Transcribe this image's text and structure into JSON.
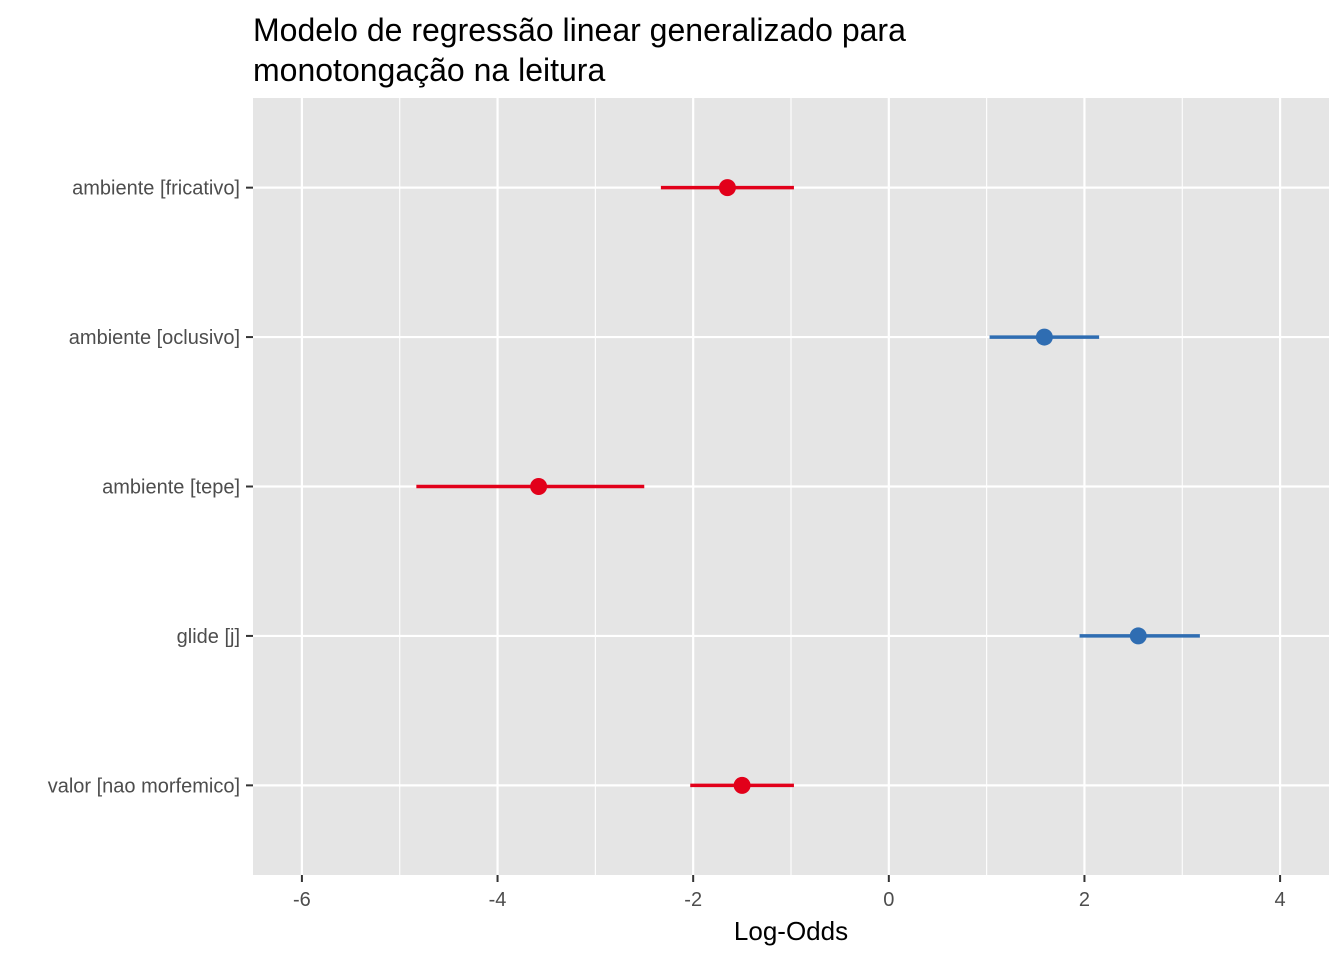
{
  "chart_data": {
    "type": "scatter",
    "title_lines": [
      "Modelo de regressão linear generalizado para",
      "monotongação na leitura"
    ],
    "xlabel": "Log-Odds",
    "ylabel": "",
    "xlim": [
      -6.5,
      4.5
    ],
    "x_ticks": [
      -6,
      -4,
      -2,
      0,
      2,
      4
    ],
    "x_tick_labels": [
      "-6",
      "-4",
      "-2",
      "0",
      "2",
      "4"
    ],
    "grid": true,
    "legend": "none",
    "colors": {
      "negative": "#e2001a",
      "positive": "#2f6db2"
    },
    "terms": [
      {
        "label": "ambiente [fricativo]",
        "estimate": -1.65,
        "conf_low": -2.33,
        "conf_high": -0.97
      },
      {
        "label": "ambiente [oclusivo]",
        "estimate": 1.59,
        "conf_low": 1.03,
        "conf_high": 2.15
      },
      {
        "label": "ambiente [tepe]",
        "estimate": -3.58,
        "conf_low": -4.83,
        "conf_high": -2.5
      },
      {
        "label": "glide [j]",
        "estimate": 2.55,
        "conf_low": 1.95,
        "conf_high": 3.18
      },
      {
        "label": "valor [nao morfemico]",
        "estimate": -1.5,
        "conf_low": -2.03,
        "conf_high": -0.97
      }
    ]
  }
}
